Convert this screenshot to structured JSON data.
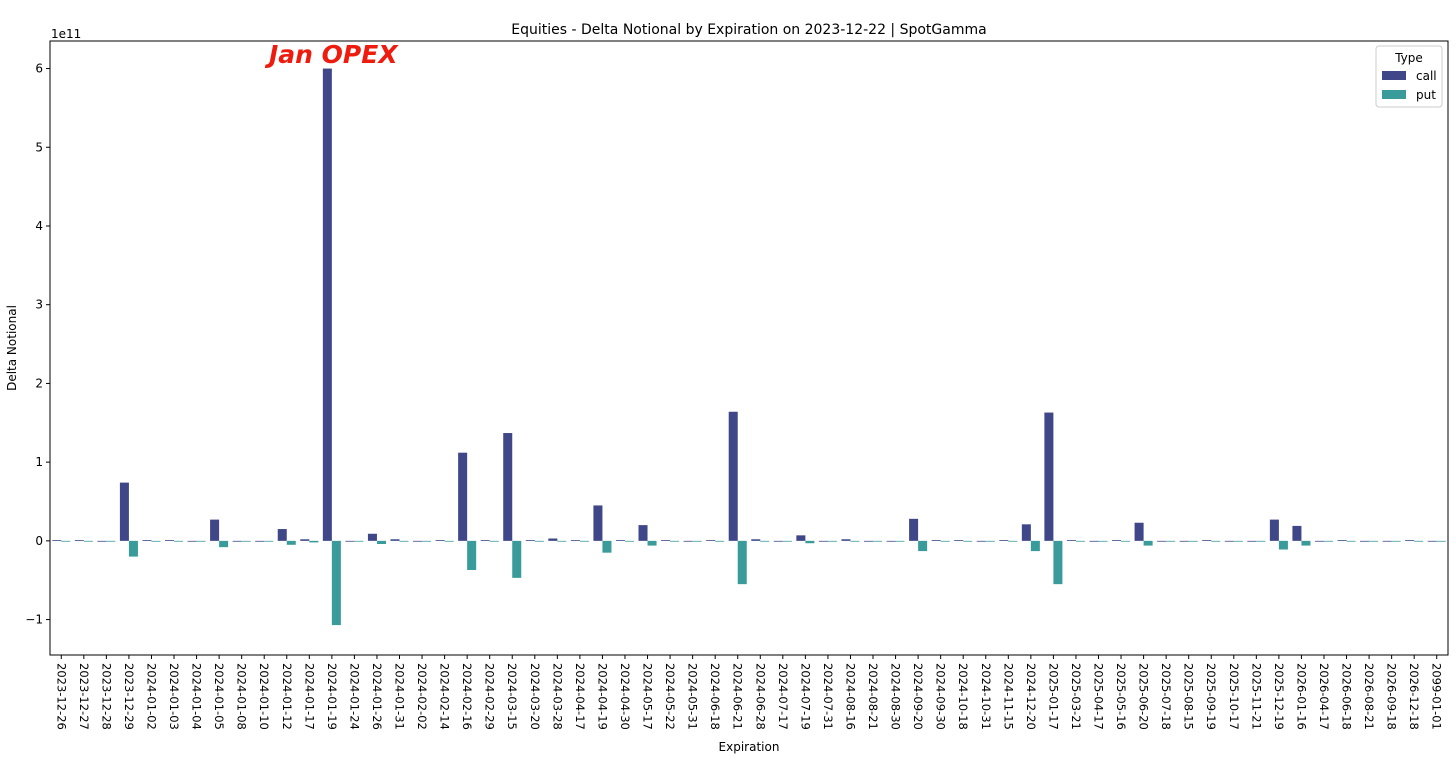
{
  "chart_data": {
    "type": "bar",
    "title": "Equities - Delta Notional by Expiration on 2023-12-22 | SpotGamma",
    "xlabel": "Expiration",
    "ylabel": "Delta Notional",
    "y_multiplier": "1e11",
    "ylim": [
      -1.45,
      6.35
    ],
    "yticks": [
      -1,
      0,
      1,
      2,
      3,
      4,
      5,
      6
    ],
    "ytick_labels": [
      "−1",
      "0",
      "1",
      "2",
      "3",
      "4",
      "5",
      "6"
    ],
    "legend": {
      "title": "Type",
      "placement": "top-right"
    },
    "annotation": {
      "text": "Jan OPEX",
      "at_category": "2024-01-19"
    },
    "categories": [
      "2023-12-26",
      "2023-12-27",
      "2023-12-28",
      "2023-12-29",
      "2024-01-02",
      "2024-01-03",
      "2024-01-04",
      "2024-01-05",
      "2024-01-08",
      "2024-01-10",
      "2024-01-12",
      "2024-01-17",
      "2024-01-19",
      "2024-01-24",
      "2024-01-26",
      "2024-01-31",
      "2024-02-02",
      "2024-02-14",
      "2024-02-16",
      "2024-02-29",
      "2024-03-15",
      "2024-03-20",
      "2024-03-28",
      "2024-04-17",
      "2024-04-19",
      "2024-04-30",
      "2024-05-17",
      "2024-05-22",
      "2024-05-31",
      "2024-06-18",
      "2024-06-21",
      "2024-06-28",
      "2024-07-17",
      "2024-07-19",
      "2024-07-31",
      "2024-08-16",
      "2024-08-21",
      "2024-08-30",
      "2024-09-20",
      "2024-09-30",
      "2024-10-18",
      "2024-10-31",
      "2024-11-15",
      "2024-12-20",
      "2025-01-17",
      "2025-03-21",
      "2025-04-17",
      "2025-05-16",
      "2025-06-20",
      "2025-07-18",
      "2025-08-15",
      "2025-09-19",
      "2025-10-17",
      "2025-11-21",
      "2025-12-19",
      "2026-01-16",
      "2026-04-17",
      "2026-06-18",
      "2026-08-21",
      "2026-09-18",
      "2026-12-18",
      "2099-01-01"
    ],
    "series": [
      {
        "name": "call",
        "color": "#3f4788",
        "values": [
          0.01,
          0.01,
          0,
          0.74,
          0.01,
          0.01,
          0,
          0.27,
          0,
          0,
          0.15,
          0.02,
          6.0,
          0,
          0.09,
          0.02,
          0,
          0.01,
          1.12,
          0.01,
          1.37,
          0.01,
          0.03,
          0.01,
          0.45,
          0.01,
          0.2,
          0.01,
          0,
          0.01,
          1.64,
          0.02,
          0,
          0.07,
          0,
          0.02,
          0,
          0,
          0.28,
          0.01,
          0.01,
          0,
          0.01,
          0.21,
          1.63,
          0.01,
          0,
          0.01,
          0.23,
          0,
          0,
          0.01,
          0,
          0,
          0.27,
          0.19,
          0,
          0.01,
          0,
          0,
          0.01,
          0
        ]
      },
      {
        "name": "put",
        "color": "#3a9c9a",
        "values": [
          0,
          0,
          0,
          -0.2,
          0,
          0,
          0,
          -0.08,
          0,
          0,
          -0.05,
          -0.02,
          -1.07,
          0,
          -0.04,
          -0.01,
          0,
          -0.01,
          -0.37,
          0,
          -0.47,
          -0.01,
          -0.01,
          -0.01,
          -0.15,
          0,
          -0.06,
          0,
          0,
          0,
          -0.55,
          0,
          0,
          -0.03,
          0,
          -0.01,
          0,
          0,
          -0.13,
          0,
          0,
          0,
          0,
          -0.13,
          -0.55,
          0,
          0,
          0,
          -0.06,
          0,
          0,
          0,
          0,
          0,
          -0.11,
          -0.06,
          0,
          0,
          0,
          0,
          0,
          0
        ]
      }
    ]
  }
}
